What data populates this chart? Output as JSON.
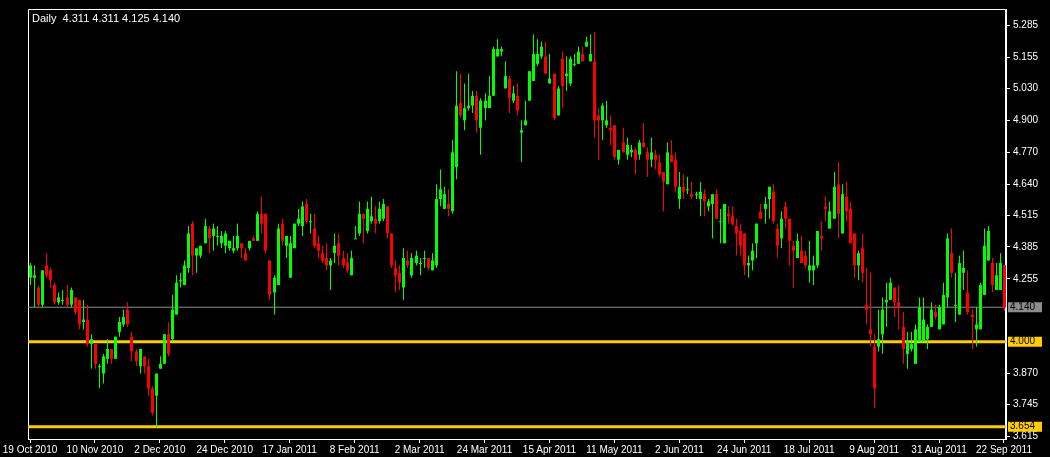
{
  "chart_data": {
    "type": "candlestick",
    "title": "Daily  4.311 4.311 4.125 4.140",
    "categories": [
      "19 Oct 2010",
      null,
      null,
      null,
      null,
      null,
      null,
      null,
      null,
      null,
      null,
      null,
      null,
      null,
      null,
      null,
      "10 Nov 2010",
      null,
      null,
      null,
      null,
      null,
      null,
      null,
      null,
      null,
      null,
      null,
      null,
      null,
      null,
      null,
      "2 Dec 2010",
      null,
      null,
      null,
      null,
      null,
      null,
      null,
      null,
      null,
      null,
      null,
      null,
      null,
      null,
      null,
      "24 Dec 2010",
      null,
      null,
      null,
      null,
      null,
      null,
      null,
      null,
      null,
      null,
      null,
      null,
      null,
      null,
      null,
      "17 Jan 2011",
      null,
      null,
      null,
      null,
      null,
      null,
      null,
      null,
      null,
      null,
      null,
      null,
      null,
      null,
      null,
      "8 Feb 2011",
      null,
      null,
      null,
      null,
      null,
      null,
      null,
      null,
      null,
      null,
      null,
      null,
      null,
      null,
      null,
      "2 Mar 2011",
      null,
      null,
      null,
      null,
      null,
      null,
      null,
      null,
      null,
      null,
      null,
      null,
      null,
      null,
      null,
      "24 Mar 2011",
      null,
      null,
      null,
      null,
      null,
      null,
      null,
      null,
      null,
      null,
      null,
      null,
      null,
      null,
      null,
      "15 Apr 2011",
      null,
      null,
      null,
      null,
      null,
      null,
      null,
      null,
      null,
      null,
      null,
      null,
      null,
      null,
      null,
      "11 May 2011",
      null,
      null,
      null,
      null,
      null,
      null,
      null,
      null,
      null,
      null,
      null,
      null,
      null,
      null,
      null,
      "2 Jun 2011",
      null,
      null,
      null,
      null,
      null,
      null,
      null,
      null,
      null,
      null,
      null,
      null,
      null,
      null,
      null,
      "24 Jun 2011",
      null,
      null,
      null,
      null,
      null,
      null,
      null,
      null,
      null,
      null,
      null,
      null,
      null,
      null,
      null,
      "18 Jul 2011",
      null,
      null,
      null,
      null,
      null,
      null,
      null,
      null,
      null,
      null,
      null,
      null,
      null,
      null,
      null,
      "9 Aug 2011",
      null,
      null,
      null,
      null,
      null,
      null,
      null,
      null,
      null,
      null,
      null,
      null,
      null,
      null,
      null,
      "31 Aug 2011",
      null,
      null,
      null,
      null,
      null,
      null,
      null,
      null,
      null,
      null,
      null,
      null,
      null,
      null,
      null,
      "22 Sep 2011"
    ],
    "ohlc": [
      [
        4.26,
        4.32,
        4.23,
        4.31
      ],
      [
        4.26,
        4.31,
        4.14,
        4.27
      ],
      [
        4.22,
        4.23,
        4.14,
        4.15
      ],
      [
        4.15,
        4.29,
        4.14,
        4.29
      ],
      [
        4.31,
        4.36,
        4.26,
        4.27
      ],
      [
        4.29,
        4.3,
        4.22,
        4.25
      ],
      [
        4.23,
        4.24,
        4.15,
        4.16
      ],
      [
        4.16,
        4.2,
        4.15,
        4.18
      ],
      [
        4.17,
        4.21,
        4.15,
        4.17
      ],
      [
        4.18,
        4.23,
        4.14,
        4.15
      ],
      [
        4.15,
        4.22,
        4.14,
        4.21
      ],
      [
        4.18,
        4.18,
        4.11,
        4.12
      ],
      [
        4.17,
        4.17,
        4.05,
        4.07
      ],
      [
        4.08,
        4.17,
        4.05,
        4.09
      ],
      [
        4.09,
        4.15,
        3.98,
        3.99
      ],
      [
        3.99,
        4.03,
        3.89,
        4.01
      ],
      [
        3.99,
        3.99,
        3.89,
        3.91
      ],
      [
        3.9,
        3.91,
        3.81,
        3.9
      ],
      [
        3.87,
        3.95,
        3.83,
        3.94
      ],
      [
        3.93,
        4.01,
        3.91,
        3.97
      ],
      [
        3.97,
        3.97,
        3.91,
        3.93
      ],
      [
        3.93,
        4.02,
        3.93,
        4.02
      ],
      [
        4.04,
        4.1,
        4.02,
        4.08
      ],
      [
        4.07,
        4.13,
        4.06,
        4.1
      ],
      [
        4.13,
        4.16,
        4.06,
        4.07
      ],
      [
        4.02,
        4.04,
        3.92,
        3.96
      ],
      [
        3.96,
        3.97,
        3.9,
        3.92
      ],
      [
        3.9,
        3.97,
        3.87,
        3.97
      ],
      [
        3.94,
        3.94,
        3.87,
        3.9
      ],
      [
        3.9,
        3.93,
        3.78,
        3.81
      ],
      [
        3.81,
        3.82,
        3.7,
        3.71
      ],
      [
        3.78,
        3.87,
        3.65,
        3.87
      ],
      [
        3.89,
        3.94,
        3.89,
        3.91
      ],
      [
        3.91,
        4.03,
        3.91,
        4.03
      ],
      [
        4.03,
        4.08,
        3.94,
        3.95
      ],
      [
        4.01,
        4.19,
        4.0,
        4.13
      ],
      [
        4.11,
        4.27,
        4.11,
        4.24
      ],
      [
        4.25,
        4.28,
        4.22,
        4.25
      ],
      [
        4.23,
        4.33,
        4.23,
        4.31
      ],
      [
        4.3,
        4.47,
        4.28,
        4.44
      ],
      [
        4.48,
        4.49,
        4.27,
        4.35
      ],
      [
        4.35,
        4.38,
        4.28,
        4.38
      ],
      [
        4.35,
        4.39,
        4.34,
        4.39
      ],
      [
        4.4,
        4.5,
        4.4,
        4.47
      ],
      [
        4.46,
        4.47,
        4.36,
        4.42
      ],
      [
        4.43,
        4.48,
        4.37,
        4.46
      ],
      [
        4.43,
        4.47,
        4.39,
        4.43
      ],
      [
        4.4,
        4.45,
        4.38,
        4.43
      ],
      [
        4.39,
        4.45,
        4.36,
        4.44
      ],
      [
        4.38,
        4.41,
        4.37,
        4.41
      ],
      [
        4.37,
        4.43,
        4.36,
        4.38
      ],
      [
        4.38,
        4.48,
        4.37,
        4.43
      ],
      [
        4.4,
        4.4,
        4.34,
        4.38
      ],
      [
        4.36,
        4.38,
        4.33,
        4.33
      ],
      [
        4.38,
        4.41,
        4.37,
        4.41
      ],
      [
        4.42,
        4.43,
        4.41,
        4.41
      ],
      [
        4.41,
        4.53,
        4.41,
        4.52
      ],
      [
        4.52,
        4.59,
        4.44,
        4.48
      ],
      [
        4.52,
        4.52,
        4.36,
        4.37
      ],
      [
        4.33,
        4.33,
        4.17,
        4.19
      ],
      [
        4.2,
        4.27,
        4.11,
        4.26
      ],
      [
        4.23,
        4.48,
        4.23,
        4.46
      ],
      [
        4.48,
        4.5,
        4.39,
        4.41
      ],
      [
        4.39,
        4.43,
        4.34,
        4.43
      ],
      [
        4.26,
        4.43,
        4.26,
        4.4
      ],
      [
        4.38,
        4.48,
        4.38,
        4.48
      ],
      [
        4.48,
        4.54,
        4.47,
        4.5
      ],
      [
        4.47,
        4.57,
        4.43,
        4.55
      ],
      [
        4.56,
        4.58,
        4.48,
        4.49
      ],
      [
        4.49,
        4.52,
        4.44,
        4.49
      ],
      [
        4.46,
        4.52,
        4.38,
        4.39
      ],
      [
        4.4,
        4.43,
        4.34,
        4.37
      ],
      [
        4.36,
        4.39,
        4.32,
        4.33
      ],
      [
        4.34,
        4.4,
        4.29,
        4.31
      ],
      [
        4.31,
        4.34,
        4.21,
        4.33
      ],
      [
        4.36,
        4.44,
        4.32,
        4.39
      ],
      [
        4.4,
        4.44,
        4.31,
        4.35
      ],
      [
        4.34,
        4.37,
        4.3,
        4.31
      ],
      [
        4.32,
        4.36,
        4.28,
        4.29
      ],
      [
        4.27,
        4.37,
        4.27,
        4.34
      ],
      [
        4.42,
        4.47,
        4.42,
        4.42
      ],
      [
        4.44,
        4.57,
        4.43,
        4.52
      ],
      [
        4.52,
        4.52,
        4.4,
        4.5
      ],
      [
        4.45,
        4.57,
        4.44,
        4.54
      ],
      [
        4.49,
        4.59,
        4.48,
        4.51
      ],
      [
        4.5,
        4.55,
        4.44,
        4.48
      ],
      [
        4.49,
        4.57,
        4.48,
        4.54
      ],
      [
        4.5,
        4.58,
        4.49,
        4.56
      ],
      [
        4.55,
        4.55,
        4.42,
        4.44
      ],
      [
        4.44,
        4.44,
        4.3,
        4.31
      ],
      [
        4.3,
        4.33,
        4.2,
        4.27
      ],
      [
        4.28,
        4.31,
        4.21,
        4.24
      ],
      [
        4.22,
        4.38,
        4.17,
        4.34
      ],
      [
        4.33,
        4.37,
        4.3,
        4.31
      ],
      [
        4.27,
        4.36,
        4.26,
        4.34
      ],
      [
        4.32,
        4.37,
        4.31,
        4.35
      ],
      [
        4.32,
        4.34,
        4.27,
        4.32
      ],
      [
        4.34,
        4.37,
        4.3,
        4.34
      ],
      [
        4.34,
        4.34,
        4.29,
        4.3
      ],
      [
        4.29,
        4.36,
        4.29,
        4.33
      ],
      [
        4.31,
        4.64,
        4.3,
        4.58
      ],
      [
        4.58,
        4.7,
        4.55,
        4.62
      ],
      [
        4.54,
        4.63,
        4.54,
        4.6
      ],
      [
        4.56,
        4.62,
        4.51,
        4.54
      ],
      [
        4.53,
        4.82,
        4.52,
        4.77
      ],
      [
        4.71,
        5.1,
        4.66,
        4.96
      ],
      [
        4.97,
        5.09,
        4.91,
        4.92
      ],
      [
        4.9,
        5.05,
        4.86,
        4.95
      ],
      [
        4.95,
        5.09,
        4.94,
        4.96
      ],
      [
        4.96,
        5.02,
        4.93,
        5.0
      ],
      [
        5.0,
        5.02,
        4.85,
        4.9
      ],
      [
        4.87,
        4.99,
        4.76,
        4.98
      ],
      [
        4.95,
        5.01,
        4.9,
        4.98
      ],
      [
        4.95,
        5.08,
        4.95,
        5.0
      ],
      [
        5.0,
        5.2,
        5.0,
        5.19
      ],
      [
        5.16,
        5.23,
        5.16,
        5.19
      ],
      [
        5.18,
        5.2,
        5.16,
        5.19
      ],
      [
        5.03,
        5.14,
        5.03,
        5.08
      ],
      [
        5.07,
        5.08,
        4.93,
        4.99
      ],
      [
        4.98,
        5.04,
        4.97,
        5.01
      ],
      [
        5.0,
        5.05,
        4.92,
        4.94
      ],
      [
        4.85,
        4.9,
        4.73,
        4.86
      ],
      [
        4.88,
        4.98,
        4.88,
        4.9
      ],
      [
        4.98,
        5.1,
        4.98,
        5.1
      ],
      [
        5.06,
        5.25,
        5.06,
        5.17
      ],
      [
        5.13,
        5.23,
        5.12,
        5.17
      ],
      [
        5.16,
        5.22,
        5.15,
        5.2
      ],
      [
        5.16,
        5.22,
        5.09,
        5.09
      ],
      [
        5.05,
        5.17,
        5.05,
        5.07
      ],
      [
        5.09,
        5.09,
        4.9,
        4.91
      ],
      [
        4.92,
        5.04,
        4.92,
        5.03
      ],
      [
        5.15,
        5.18,
        4.95,
        5.04
      ],
      [
        5.08,
        5.16,
        5.02,
        5.09
      ],
      [
        5.05,
        5.16,
        5.04,
        5.15
      ],
      [
        5.13,
        5.17,
        5.12,
        5.13
      ],
      [
        5.13,
        5.2,
        5.13,
        5.18
      ],
      [
        5.17,
        5.2,
        5.14,
        5.14
      ],
      [
        5.2,
        5.24,
        5.2,
        5.22
      ],
      [
        5.14,
        5.25,
        5.14,
        5.17
      ],
      [
        5.14,
        5.26,
        4.83,
        4.9
      ],
      [
        4.92,
        4.95,
        4.74,
        4.9
      ],
      [
        4.9,
        4.97,
        4.82,
        4.96
      ],
      [
        4.88,
        4.98,
        4.87,
        4.9
      ],
      [
        4.87,
        4.92,
        4.8,
        4.86
      ],
      [
        4.88,
        4.88,
        4.74,
        4.75
      ],
      [
        4.74,
        4.78,
        4.72,
        4.78
      ],
      [
        4.81,
        4.87,
        4.77,
        4.77
      ],
      [
        4.76,
        4.83,
        4.74,
        4.8
      ],
      [
        4.77,
        4.8,
        4.75,
        4.78
      ],
      [
        4.78,
        4.79,
        4.68,
        4.74
      ],
      [
        4.76,
        4.82,
        4.74,
        4.81
      ],
      [
        4.81,
        4.89,
        4.79,
        4.79
      ],
      [
        4.77,
        4.79,
        4.67,
        4.74
      ],
      [
        4.74,
        4.83,
        4.71,
        4.77
      ],
      [
        4.76,
        4.78,
        4.7,
        4.74
      ],
      [
        4.73,
        4.76,
        4.67,
        4.68
      ],
      [
        4.69,
        4.69,
        4.53,
        4.65
      ],
      [
        4.64,
        4.81,
        4.64,
        4.77
      ],
      [
        4.76,
        4.82,
        4.73,
        4.73
      ],
      [
        4.74,
        4.77,
        4.61,
        4.63
      ],
      [
        4.58,
        4.69,
        4.54,
        4.63
      ],
      [
        4.63,
        4.68,
        4.58,
        4.61
      ],
      [
        4.62,
        4.67,
        4.6,
        4.62
      ],
      [
        4.6,
        4.65,
        4.58,
        4.59
      ],
      [
        4.6,
        4.61,
        4.58,
        4.6
      ],
      [
        4.58,
        4.65,
        4.51,
        4.61
      ],
      [
        4.6,
        4.62,
        4.51,
        4.57
      ],
      [
        4.55,
        4.58,
        4.53,
        4.57
      ],
      [
        4.56,
        4.6,
        4.42,
        4.6
      ],
      [
        4.6,
        4.62,
        4.5,
        4.5
      ],
      [
        4.49,
        4.54,
        4.4,
        4.49
      ],
      [
        4.4,
        4.56,
        4.4,
        4.56
      ],
      [
        4.52,
        4.55,
        4.48,
        4.51
      ],
      [
        4.51,
        4.55,
        4.47,
        4.48
      ],
      [
        4.47,
        4.5,
        4.35,
        4.44
      ],
      [
        4.45,
        4.48,
        4.35,
        4.39
      ],
      [
        4.44,
        4.44,
        4.27,
        4.31
      ],
      [
        4.31,
        4.35,
        4.26,
        4.32
      ],
      [
        4.33,
        4.4,
        4.29,
        4.37
      ],
      [
        4.4,
        4.48,
        4.34,
        4.48
      ],
      [
        4.53,
        4.56,
        4.5,
        4.5
      ],
      [
        4.54,
        4.59,
        4.48,
        4.56
      ],
      [
        4.58,
        4.63,
        4.5,
        4.63
      ],
      [
        4.61,
        4.64,
        4.48,
        4.49
      ],
      [
        4.46,
        4.48,
        4.34,
        4.39
      ],
      [
        4.42,
        4.53,
        4.38,
        4.5
      ],
      [
        4.55,
        4.57,
        4.46,
        4.5
      ],
      [
        4.5,
        4.5,
        4.31,
        4.41
      ],
      [
        4.39,
        4.41,
        4.22,
        4.37
      ],
      [
        4.34,
        4.44,
        4.34,
        4.41
      ],
      [
        4.37,
        4.43,
        4.32,
        4.32
      ],
      [
        4.35,
        4.37,
        4.3,
        4.31
      ],
      [
        4.29,
        4.41,
        4.24,
        4.31
      ],
      [
        4.29,
        4.35,
        4.23,
        4.31
      ],
      [
        4.31,
        4.45,
        4.3,
        4.45
      ],
      [
        4.43,
        4.49,
        4.37,
        4.42
      ],
      [
        4.55,
        4.59,
        4.49,
        4.54
      ],
      [
        4.46,
        4.57,
        4.46,
        4.53
      ],
      [
        4.5,
        4.69,
        4.5,
        4.63
      ],
      [
        4.64,
        4.73,
        4.42,
        4.52
      ],
      [
        4.44,
        4.64,
        4.44,
        4.6
      ],
      [
        4.59,
        4.65,
        4.49,
        4.53
      ],
      [
        4.54,
        4.57,
        4.4,
        4.4
      ],
      [
        4.44,
        4.44,
        4.26,
        4.31
      ],
      [
        4.31,
        4.37,
        4.25,
        4.36
      ],
      [
        4.38,
        4.44,
        4.24,
        4.28
      ],
      [
        4.15,
        4.3,
        4.07,
        4.13
      ],
      [
        4.05,
        4.28,
        3.98,
        4.03
      ],
      [
        3.98,
        4.03,
        3.73,
        3.81
      ],
      [
        3.98,
        4.13,
        3.96,
        4.01
      ],
      [
        4.03,
        4.18,
        3.95,
        4.13
      ],
      [
        4.16,
        4.24,
        4.06,
        4.17
      ],
      [
        4.17,
        4.26,
        4.17,
        4.24
      ],
      [
        4.22,
        4.22,
        4.1,
        4.16
      ],
      [
        4.16,
        4.23,
        4.05,
        4.14
      ],
      [
        4.06,
        4.12,
        3.91,
        3.97
      ],
      [
        3.95,
        4.04,
        3.89,
        4.0
      ],
      [
        3.97,
        4.04,
        3.96,
        3.99
      ],
      [
        3.91,
        4.07,
        3.91,
        4.05
      ],
      [
        4.0,
        4.18,
        4.0,
        4.14
      ],
      [
        4.0,
        4.18,
        4.0,
        4.09
      ],
      [
        4.01,
        4.07,
        3.97,
        4.06
      ],
      [
        4.06,
        4.16,
        4.06,
        4.13
      ],
      [
        4.12,
        4.15,
        4.09,
        4.1
      ],
      [
        4.05,
        4.15,
        4.05,
        4.14
      ],
      [
        4.07,
        4.24,
        4.07,
        4.19
      ],
      [
        4.18,
        4.44,
        4.14,
        4.42
      ],
      [
        4.36,
        4.46,
        4.26,
        4.28
      ],
      [
        4.15,
        4.28,
        4.08,
        4.15
      ],
      [
        4.11,
        4.35,
        4.11,
        4.32
      ],
      [
        4.28,
        4.37,
        4.21,
        4.3
      ],
      [
        4.2,
        4.29,
        4.11,
        4.12
      ],
      [
        4.11,
        4.13,
        3.97,
        4.1
      ],
      [
        4.05,
        4.14,
        3.98,
        4.07
      ],
      [
        4.05,
        4.24,
        4.05,
        4.23
      ],
      [
        4.19,
        4.46,
        4.19,
        4.39
      ],
      [
        4.33,
        4.47,
        4.33,
        4.45
      ],
      [
        4.32,
        4.34,
        4.2,
        4.23
      ],
      [
        4.21,
        4.32,
        4.21,
        4.27
      ],
      [
        4.21,
        4.36,
        4.21,
        4.32
      ],
      [
        4.311,
        4.311,
        4.125,
        4.14
      ]
    ],
    "ylim": [
      3.604,
      5.353
    ],
    "yticks": [
      3.615,
      3.745,
      {
        "value": 3.87,
        "label": "3.870"
      },
      4.255,
      4.385,
      4.515,
      {
        "value": 4.64,
        "label": "4.640"
      },
      {
        "value": 4.77,
        "label": "4.770"
      },
      {
        "value": 4.9,
        "label": "4.900"
      },
      {
        "value": 5.03,
        "label": "5.030"
      },
      5.155,
      5.285
    ],
    "ref_lines": [
      {
        "axis": "y",
        "value": 4.14,
        "label": "4.140",
        "color": "#8c8c8c"
      },
      {
        "axis": "y",
        "value": 4.0,
        "label": "4.000",
        "color": "#ffcc00"
      },
      {
        "axis": "y",
        "value": 3.654,
        "label": "3.654",
        "color": "#ffcc00"
      }
    ]
  }
}
